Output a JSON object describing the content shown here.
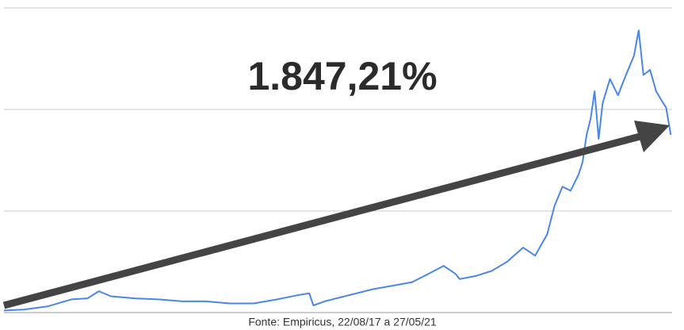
{
  "chart_data": {
    "type": "line",
    "annotation": "1.847,21%",
    "source": "Fonte: Empiricus, 22/08/17 a 27/05/21",
    "x": [
      0,
      3.0,
      6.5,
      10.1,
      12.5,
      14.2,
      16.0,
      19.6,
      23.1,
      26.7,
      30.2,
      33.8,
      37.4,
      40.9,
      43.9,
      45.7,
      46.3,
      48.0,
      51.6,
      55.2,
      58.7,
      61.1,
      63.5,
      65.8,
      67.6,
      68.2,
      70.6,
      73.0,
      75.3,
      77.7,
      79.5,
      81.3,
      82.4,
      83.6,
      84.8,
      86.0,
      86.6,
      87.2,
      87.8,
      88.4,
      89.0,
      89.6,
      90.7,
      91.9,
      93.1,
      94.3,
      95.0,
      95.7,
      96.7,
      97.6,
      98.5,
      99.1,
      99.8
    ],
    "series": [
      {
        "color": "#4a86e8",
        "values": [
          0.02,
          0.03,
          0.06,
          0.13,
          0.14,
          0.21,
          0.16,
          0.14,
          0.13,
          0.11,
          0.11,
          0.09,
          0.09,
          0.13,
          0.17,
          0.19,
          0.07,
          0.11,
          0.17,
          0.23,
          0.27,
          0.3,
          0.38,
          0.46,
          0.38,
          0.33,
          0.36,
          0.41,
          0.5,
          0.64,
          0.56,
          0.77,
          1.05,
          1.24,
          1.2,
          1.36,
          1.48,
          1.75,
          1.91,
          2.18,
          1.71,
          2.06,
          2.3,
          2.14,
          2.34,
          2.53,
          2.78,
          2.34,
          2.39,
          2.18,
          2.08,
          2.02,
          1.75
        ]
      }
    ],
    "xlim": [
      0,
      100
    ],
    "ylim": [
      0,
      3
    ],
    "yticks": [
      0,
      1,
      2,
      3
    ],
    "grid": true
  }
}
